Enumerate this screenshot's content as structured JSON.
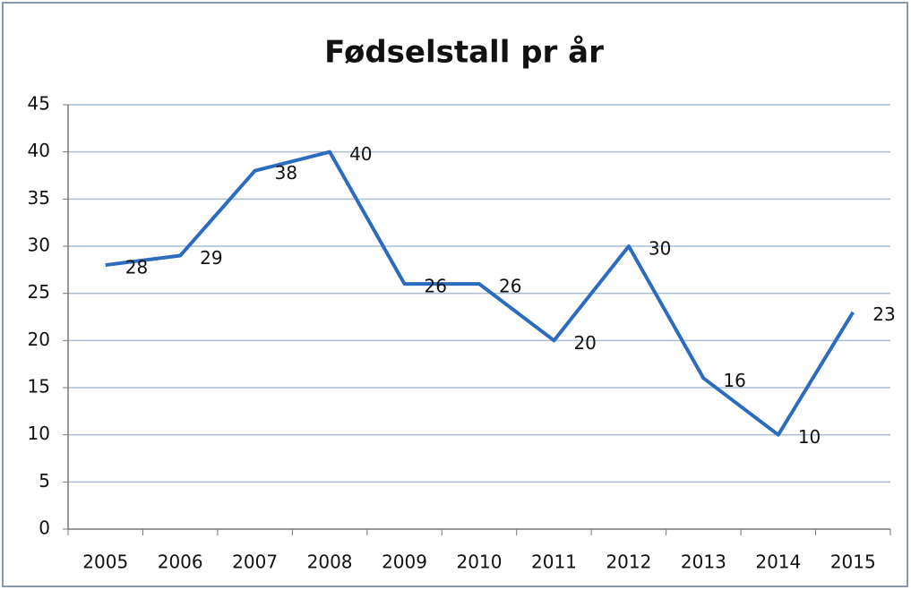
{
  "chart_data": {
    "type": "line",
    "title": "Fødselstall pr år",
    "categories": [
      "2005",
      "2006",
      "2007",
      "2008",
      "2009",
      "2010",
      "2011",
      "2012",
      "2013",
      "2014",
      "2015"
    ],
    "values": [
      28,
      29,
      38,
      40,
      26,
      26,
      20,
      30,
      16,
      10,
      23
    ],
    "color": "#2b6cbf",
    "ylim": [
      0,
      45
    ],
    "yticks": [
      0,
      5,
      10,
      15,
      20,
      25,
      30,
      35,
      40,
      45
    ],
    "grid": true
  }
}
